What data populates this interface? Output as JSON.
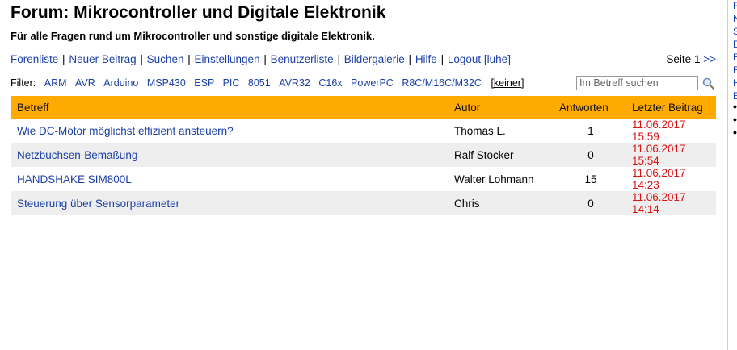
{
  "header": {
    "title": "Forum: Mikrocontroller und Digitale Elektronik",
    "subtitle": "Für alle Fragen rund um Mikrocontroller und sonstige digitale Elektronik."
  },
  "nav": {
    "items": [
      "Forenliste",
      "Neuer Beitrag",
      "Suchen",
      "Einstellungen",
      "Benutzerliste",
      "Bildergalerie",
      "Hilfe",
      "Logout [luhe]"
    ],
    "separator": "|"
  },
  "pager": {
    "label": "Seite 1",
    "next": ">>"
  },
  "filter": {
    "label": "Filter:",
    "items": [
      "ARM",
      "AVR",
      "Arduino",
      "MSP430",
      "ESP",
      "PIC",
      "8051",
      "AVR32",
      "C16x",
      "PowerPC",
      "R8C/M16C/M32C"
    ],
    "none": "[keiner]"
  },
  "search": {
    "placeholder": "Im Betreff suchen"
  },
  "table": {
    "headers": {
      "subject": "Betreff",
      "author": "Autor",
      "answers": "Antworten",
      "last": "Letzter Beitrag"
    },
    "rows": [
      {
        "subject": "Wie DC-Motor möglichst effizient ansteuern?",
        "author": "Thomas L.",
        "answers": "1",
        "last": "11.06.2017 15:59"
      },
      {
        "subject": "Netzbuchsen-Bemaßung",
        "author": "Ralf Stocker",
        "answers": "0",
        "last": "11.06.2017 15:54"
      },
      {
        "subject": "HANDSHAKE SIM800L",
        "author": "Walter Lohmann",
        "answers": "15",
        "last": "11.06.2017 14:23"
      },
      {
        "subject": "Steuerung über Sensorparameter",
        "author": "Chris",
        "answers": "0",
        "last": "11.06.2017 14:14"
      }
    ]
  },
  "colors": {
    "header_bg": "#ffaa00",
    "link": "#1a3fa6",
    "date": "#dd1111",
    "row_alt": "#eeeeee"
  },
  "icons": {
    "search": "magnifier-icon"
  }
}
